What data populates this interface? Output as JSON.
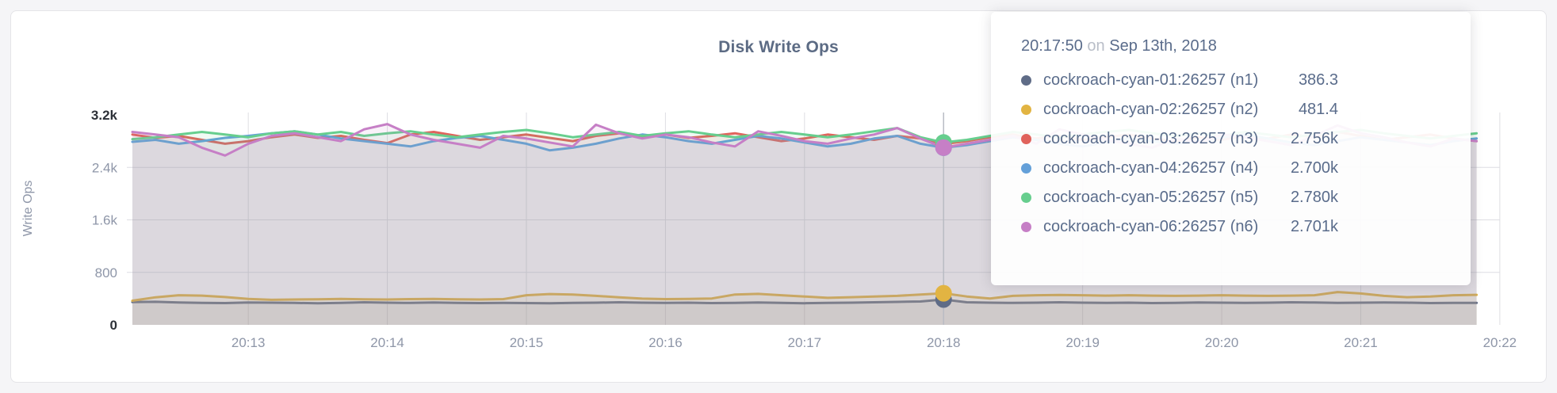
{
  "chart": {
    "title": "Disk Write Ops"
  },
  "colors": {
    "page_bg": "#f5f5f7",
    "card_bg": "#ffffff",
    "card_border": "#e4e4e8",
    "grid": "#dedee3",
    "hover_line": "#b9bcc4",
    "axis_text": "#8e96a8",
    "axis_text_emphasis": "#2d3138",
    "title_text": "#5c6b84",
    "tooltip_text": "#5a6c8b",
    "tooltip_muted": "#b9bec8"
  },
  "chart_data": {
    "type": "line",
    "title": "Disk Write Ops",
    "xlabel": "",
    "ylabel": "Write Ops",
    "ylim": [
      0,
      3200
    ],
    "grid": true,
    "legend_position": "tooltip-only",
    "area_fill_opacity": 0.1,
    "y_ticks": [
      {
        "value": 0,
        "label": "0",
        "emph": true
      },
      {
        "value": 800,
        "label": "800",
        "emph": false
      },
      {
        "value": 1600,
        "label": "1.6k",
        "emph": false
      },
      {
        "value": 2400,
        "label": "2.4k",
        "emph": false
      },
      {
        "value": 3200,
        "label": "3.2k",
        "emph": true
      }
    ],
    "x_ticks": [
      "20:13",
      "20:14",
      "20:15",
      "20:16",
      "20:17",
      "20:18",
      "20:19",
      "20:20",
      "20:21",
      "20:22"
    ],
    "start_time": "20:12:10",
    "interval_seconds": 10,
    "series": [
      {
        "short": "n1",
        "name": "cockroach-cyan-01:26257 (n1)",
        "color": "#5f6c87",
        "values": [
          348,
          352,
          340,
          336,
          332,
          342,
          338,
          334,
          330,
          336,
          344,
          338,
          334,
          340,
          336,
          332,
          336,
          332,
          328,
          334,
          338,
          344,
          338,
          334,
          338,
          332,
          336,
          342,
          334,
          330,
          334,
          338,
          344,
          350,
          356,
          386.3,
          344,
          338,
          334,
          338,
          344,
          338,
          334,
          338,
          332,
          336,
          342,
          338,
          334,
          338,
          344,
          340,
          334,
          338,
          342,
          338,
          332,
          336,
          334
        ]
      },
      {
        "short": "n2",
        "name": "cockroach-cyan-02:26257 (n2)",
        "color": "#e2b442",
        "values": [
          368,
          420,
          452,
          446,
          424,
          396,
          382,
          386,
          390,
          396,
          390,
          386,
          392,
          396,
          390,
          386,
          392,
          452,
          470,
          462,
          442,
          420,
          400,
          392,
          396,
          402,
          462,
          472,
          452,
          432,
          412,
          422,
          432,
          442,
          462,
          481.4,
          432,
          402,
          442,
          452,
          456,
          452,
          446,
          452,
          446,
          442,
          446,
          452,
          446,
          442,
          446,
          452,
          500,
          478,
          442,
          422,
          432,
          452,
          458
        ]
      },
      {
        "short": "n3",
        "name": "cockroach-cyan-03:26257 (n3)",
        "color": "#e0635c",
        "values": [
          2900,
          2850,
          2880,
          2820,
          2760,
          2800,
          2860,
          2900,
          2850,
          2880,
          2820,
          2770,
          2900,
          2940,
          2880,
          2820,
          2860,
          2900,
          2850,
          2800,
          2880,
          2920,
          2860,
          2900,
          2850,
          2880,
          2920,
          2860,
          2800,
          2840,
          2900,
          2860,
          2820,
          2880,
          2840,
          2756,
          2800,
          2860,
          2900,
          2840,
          2880,
          2820,
          2860,
          2900,
          2840,
          2800,
          2860,
          2820,
          2880,
          2840,
          2900,
          2860,
          2940,
          2880,
          2820,
          2860,
          2900,
          2840,
          2800
        ]
      },
      {
        "short": "n4",
        "name": "cockroach-cyan-04:26257 (n4)",
        "color": "#64a0d9",
        "values": [
          2790,
          2820,
          2760,
          2800,
          2850,
          2880,
          2920,
          2950,
          2900,
          2840,
          2800,
          2760,
          2720,
          2800,
          2850,
          2880,
          2820,
          2760,
          2660,
          2700,
          2760,
          2840,
          2900,
          2860,
          2800,
          2760,
          2820,
          2880,
          2840,
          2780,
          2720,
          2760,
          2840,
          2880,
          2760,
          2700,
          2740,
          2800,
          2860,
          2820,
          2760,
          2720,
          2780,
          2840,
          2800,
          2760,
          2800,
          2860,
          2900,
          2840,
          2780,
          2740,
          2800,
          2860,
          2820,
          2780,
          2740,
          2800,
          2840
        ]
      },
      {
        "short": "n5",
        "name": "cockroach-cyan-05:26257 (n5)",
        "color": "#67ce8e",
        "values": [
          2830,
          2860,
          2900,
          2940,
          2900,
          2860,
          2920,
          2950,
          2900,
          2940,
          2880,
          2920,
          2950,
          2900,
          2860,
          2900,
          2940,
          2970,
          2920,
          2860,
          2900,
          2940,
          2880,
          2920,
          2950,
          2900,
          2860,
          2900,
          2940,
          2900,
          2860,
          2900,
          2950,
          3000,
          2860,
          2780,
          2820,
          2880,
          2940,
          2900,
          2860,
          2900,
          2940,
          2970,
          2920,
          2880,
          2920,
          2880,
          2940,
          2900,
          2860,
          2900,
          2940,
          2970,
          2920,
          2880,
          2840,
          2880,
          2920
        ]
      },
      {
        "short": "n6",
        "name": "cockroach-cyan-06:26257 (n6)",
        "color": "#c67fc6",
        "values": [
          2940,
          2900,
          2860,
          2700,
          2580,
          2760,
          2880,
          2920,
          2860,
          2800,
          2980,
          3060,
          2900,
          2820,
          2760,
          2700,
          2880,
          2840,
          2780,
          2720,
          3050,
          2920,
          2840,
          2900,
          2860,
          2780,
          2720,
          2950,
          2880,
          2800,
          2760,
          2840,
          2900,
          3000,
          2840,
          2701,
          2760,
          2820,
          2880,
          2760,
          2980,
          2900,
          2820,
          2760,
          2700,
          2840,
          2780,
          2900,
          2860,
          2800,
          2740,
          2880,
          3040,
          2920,
          2860,
          2780,
          2720,
          2840,
          2800
        ]
      }
    ]
  },
  "tooltip": {
    "time": "20:17:50",
    "conjunction": "on",
    "date": "Sep 13th, 2018",
    "hover_index": 35,
    "rows": [
      {
        "series": "cockroach-cyan-01:26257 (n1)",
        "value_label": "386.3"
      },
      {
        "series": "cockroach-cyan-02:26257 (n2)",
        "value_label": "481.4"
      },
      {
        "series": "cockroach-cyan-03:26257 (n3)",
        "value_label": "2.756k"
      },
      {
        "series": "cockroach-cyan-04:26257 (n4)",
        "value_label": "2.700k"
      },
      {
        "series": "cockroach-cyan-05:26257 (n5)",
        "value_label": "2.780k"
      },
      {
        "series": "cockroach-cyan-06:26257 (n6)",
        "value_label": "2.701k"
      }
    ]
  }
}
